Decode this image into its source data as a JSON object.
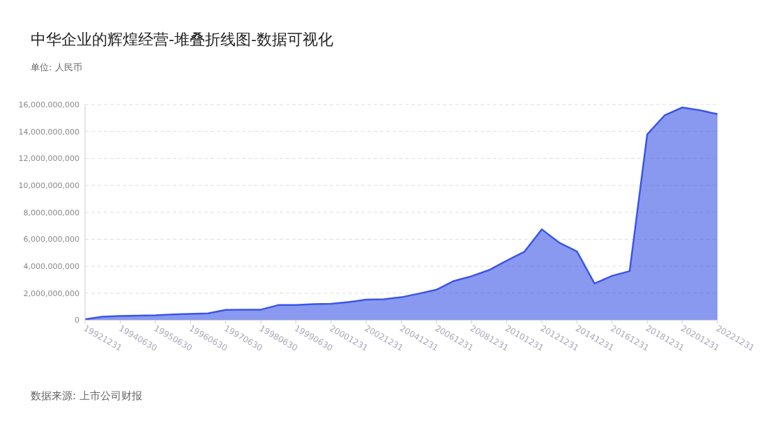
{
  "chart_data": {
    "type": "area",
    "title": "中华企业的辉煌经营-堆叠折线图-数据可视化",
    "ylabel": "单位: 人民币",
    "annotations": [
      "数据来源: 上市公司财报"
    ],
    "categories": [
      "19921231",
      null,
      "19940630",
      null,
      "19950630",
      null,
      "19960630",
      null,
      "19970630",
      null,
      "19980630",
      null,
      "19990630",
      null,
      "20001231",
      null,
      "20021231",
      null,
      "20041231",
      null,
      "20061231",
      null,
      "20081231",
      null,
      "20101231",
      null,
      "20121231",
      null,
      "20141231",
      null,
      "20161231",
      null,
      "20181231",
      null,
      "20201231",
      null,
      "20221231"
    ],
    "series": [
      {
        "color": "#3b55e6",
        "values": [
          70000000,
          260000000,
          310000000,
          330000000,
          360000000,
          430000000,
          470000000,
          500000000,
          760000000,
          780000000,
          780000000,
          1120000000,
          1120000000,
          1190000000,
          1210000000,
          1340000000,
          1520000000,
          1550000000,
          1700000000,
          1970000000,
          2260000000,
          2910000000,
          3260000000,
          3720000000,
          4410000000,
          5070000000,
          6740000000,
          5740000000,
          5100000000,
          2720000000,
          3290000000,
          3640000000,
          13780000000,
          15210000000,
          15780000000,
          15570000000,
          15290000000
        ]
      }
    ],
    "ylim": [
      0,
      16000000000
    ],
    "yticks": [
      {
        "value": 0,
        "label": "0"
      },
      {
        "value": 2000000000,
        "label": "2,000,000,000"
      },
      {
        "value": 4000000000,
        "label": "4,000,000,000"
      },
      {
        "value": 6000000000,
        "label": "6,000,000,000"
      },
      {
        "value": 8000000000,
        "label": "8,000,000,000"
      },
      {
        "value": 10000000000,
        "label": "10,000,000,000"
      },
      {
        "value": 12000000000,
        "label": "12,000,000,000"
      },
      {
        "value": 14000000000,
        "label": "14,000,000,000"
      },
      {
        "value": 16000000000,
        "label": "16,000,000,000"
      }
    ],
    "grid": "y"
  }
}
